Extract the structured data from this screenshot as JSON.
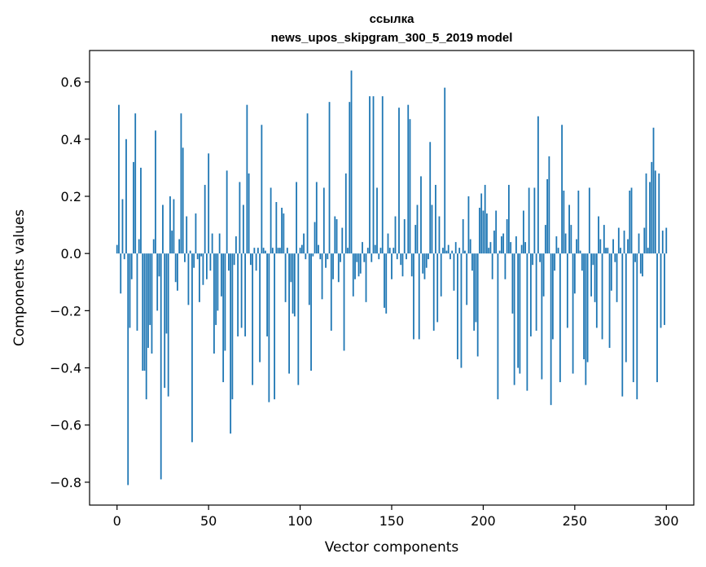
{
  "chart_data": {
    "type": "bar",
    "title": "ссылка",
    "subtitle": "news_upos_skipgram_300_5_2019 model",
    "xlabel": "Vector components",
    "ylabel": "Components values",
    "xlim": [
      -15,
      315
    ],
    "ylim": [
      -0.88,
      0.71
    ],
    "xticks": [
      0,
      50,
      100,
      150,
      200,
      250,
      300
    ],
    "xtick_labels": [
      "0",
      "50",
      "100",
      "150",
      "200",
      "250",
      "300"
    ],
    "yticks": [
      -0.8,
      -0.6,
      -0.4,
      -0.2,
      0.0,
      0.2,
      0.4,
      0.6
    ],
    "ytick_labels": [
      "−0.8",
      "−0.6",
      "−0.4",
      "−0.2",
      "0.0",
      "0.2",
      "0.4",
      "0.6"
    ],
    "bar_color": "#1f77b4",
    "grid": false,
    "values": [
      0.03,
      0.52,
      -0.14,
      0.19,
      -0.02,
      0.4,
      -0.81,
      -0.26,
      -0.09,
      0.32,
      0.49,
      -0.27,
      0.05,
      0.3,
      -0.41,
      -0.41,
      -0.51,
      -0.33,
      -0.25,
      -0.35,
      0.05,
      0.43,
      -0.2,
      -0.08,
      -0.79,
      0.17,
      -0.47,
      -0.28,
      -0.5,
      0.2,
      0.08,
      0.19,
      -0.1,
      -0.13,
      0.05,
      0.49,
      0.37,
      -0.03,
      0.13,
      -0.18,
      0.01,
      -0.66,
      -0.05,
      0.14,
      -0.02,
      -0.17,
      -0.01,
      -0.11,
      0.24,
      -0.09,
      0.35,
      -0.06,
      0.07,
      -0.35,
      -0.25,
      -0.2,
      0.07,
      -0.15,
      -0.45,
      -0.34,
      0.29,
      -0.06,
      -0.63,
      -0.51,
      -0.04,
      0.06,
      -0.29,
      0.25,
      -0.26,
      0.17,
      -0.29,
      0.52,
      0.28,
      -0.04,
      -0.46,
      0.02,
      -0.06,
      0.02,
      -0.38,
      0.45,
      0.02,
      0.01,
      -0.29,
      -0.52,
      0.23,
      0.02,
      -0.51,
      0.18,
      0.02,
      0.02,
      0.16,
      0.14,
      -0.17,
      0.02,
      -0.42,
      -0.1,
      -0.21,
      -0.22,
      0.25,
      -0.46,
      0.02,
      0.03,
      0.07,
      -0.02,
      0.49,
      -0.18,
      -0.41,
      -0.01,
      0.11,
      0.25,
      0.03,
      -0.02,
      -0.16,
      0.23,
      -0.05,
      -0.02,
      0.53,
      -0.27,
      -0.09,
      0.13,
      0.12,
      -0.1,
      -0.03,
      0.09,
      -0.34,
      0.28,
      0.02,
      0.53,
      0.64,
      -0.15,
      -0.09,
      -0.03,
      -0.08,
      -0.07,
      0.04,
      -0.03,
      -0.17,
      0.02,
      0.55,
      -0.03,
      0.55,
      0.03,
      0.23,
      -0.02,
      0.02,
      0.55,
      -0.19,
      -0.21,
      0.07,
      0.02,
      -0.09,
      0.02,
      0.13,
      -0.02,
      0.51,
      -0.04,
      -0.08,
      0.12,
      -0.02,
      0.52,
      0.47,
      -0.08,
      -0.3,
      0.1,
      0.17,
      -0.3,
      0.27,
      -0.07,
      -0.09,
      -0.05,
      -0.02,
      0.39,
      0.17,
      -0.27,
      0.24,
      -0.24,
      0.13,
      -0.15,
      0.02,
      0.58,
      0.01,
      0.03,
      -0.02,
      0.01,
      -0.13,
      0.04,
      -0.37,
      0.02,
      -0.4,
      0.12,
      0.01,
      -0.18,
      0.2,
      0.05,
      -0.06,
      -0.27,
      -0.24,
      -0.36,
      0.16,
      0.21,
      0.15,
      0.24,
      0.14,
      0.02,
      0.04,
      -0.09,
      0.08,
      0.15,
      -0.51,
      0.01,
      0.06,
      0.07,
      -0.09,
      0.12,
      0.24,
      0.04,
      -0.21,
      -0.46,
      0.06,
      -0.4,
      -0.42,
      0.03,
      0.15,
      0.04,
      -0.48,
      0.23,
      -0.29,
      -0.04,
      0.23,
      -0.27,
      0.48,
      -0.03,
      -0.44,
      -0.15,
      0.1,
      0.26,
      0.34,
      -0.53,
      -0.3,
      -0.06,
      0.06,
      0.02,
      -0.45,
      0.45,
      0.22,
      0.07,
      -0.26,
      0.17,
      0.1,
      -0.42,
      -0.14,
      0.05,
      0.22,
      0.01,
      -0.06,
      -0.37,
      -0.46,
      -0.38,
      0.23,
      -0.15,
      -0.04,
      -0.17,
      -0.26,
      0.13,
      0.05,
      -0.3,
      0.1,
      0.02,
      0.02,
      -0.33,
      -0.13,
      0.05,
      -0.03,
      -0.17,
      0.09,
      0.02,
      -0.5,
      0.08,
      -0.38,
      0.05,
      0.22,
      0.23,
      -0.45,
      -0.03,
      -0.51,
      0.07,
      -0.07,
      -0.08,
      0.09,
      0.28,
      0.02,
      0.25,
      0.32,
      0.44,
      0.29,
      -0.45,
      0.28,
      -0.26,
      0.08,
      -0.25,
      0.09
    ]
  }
}
